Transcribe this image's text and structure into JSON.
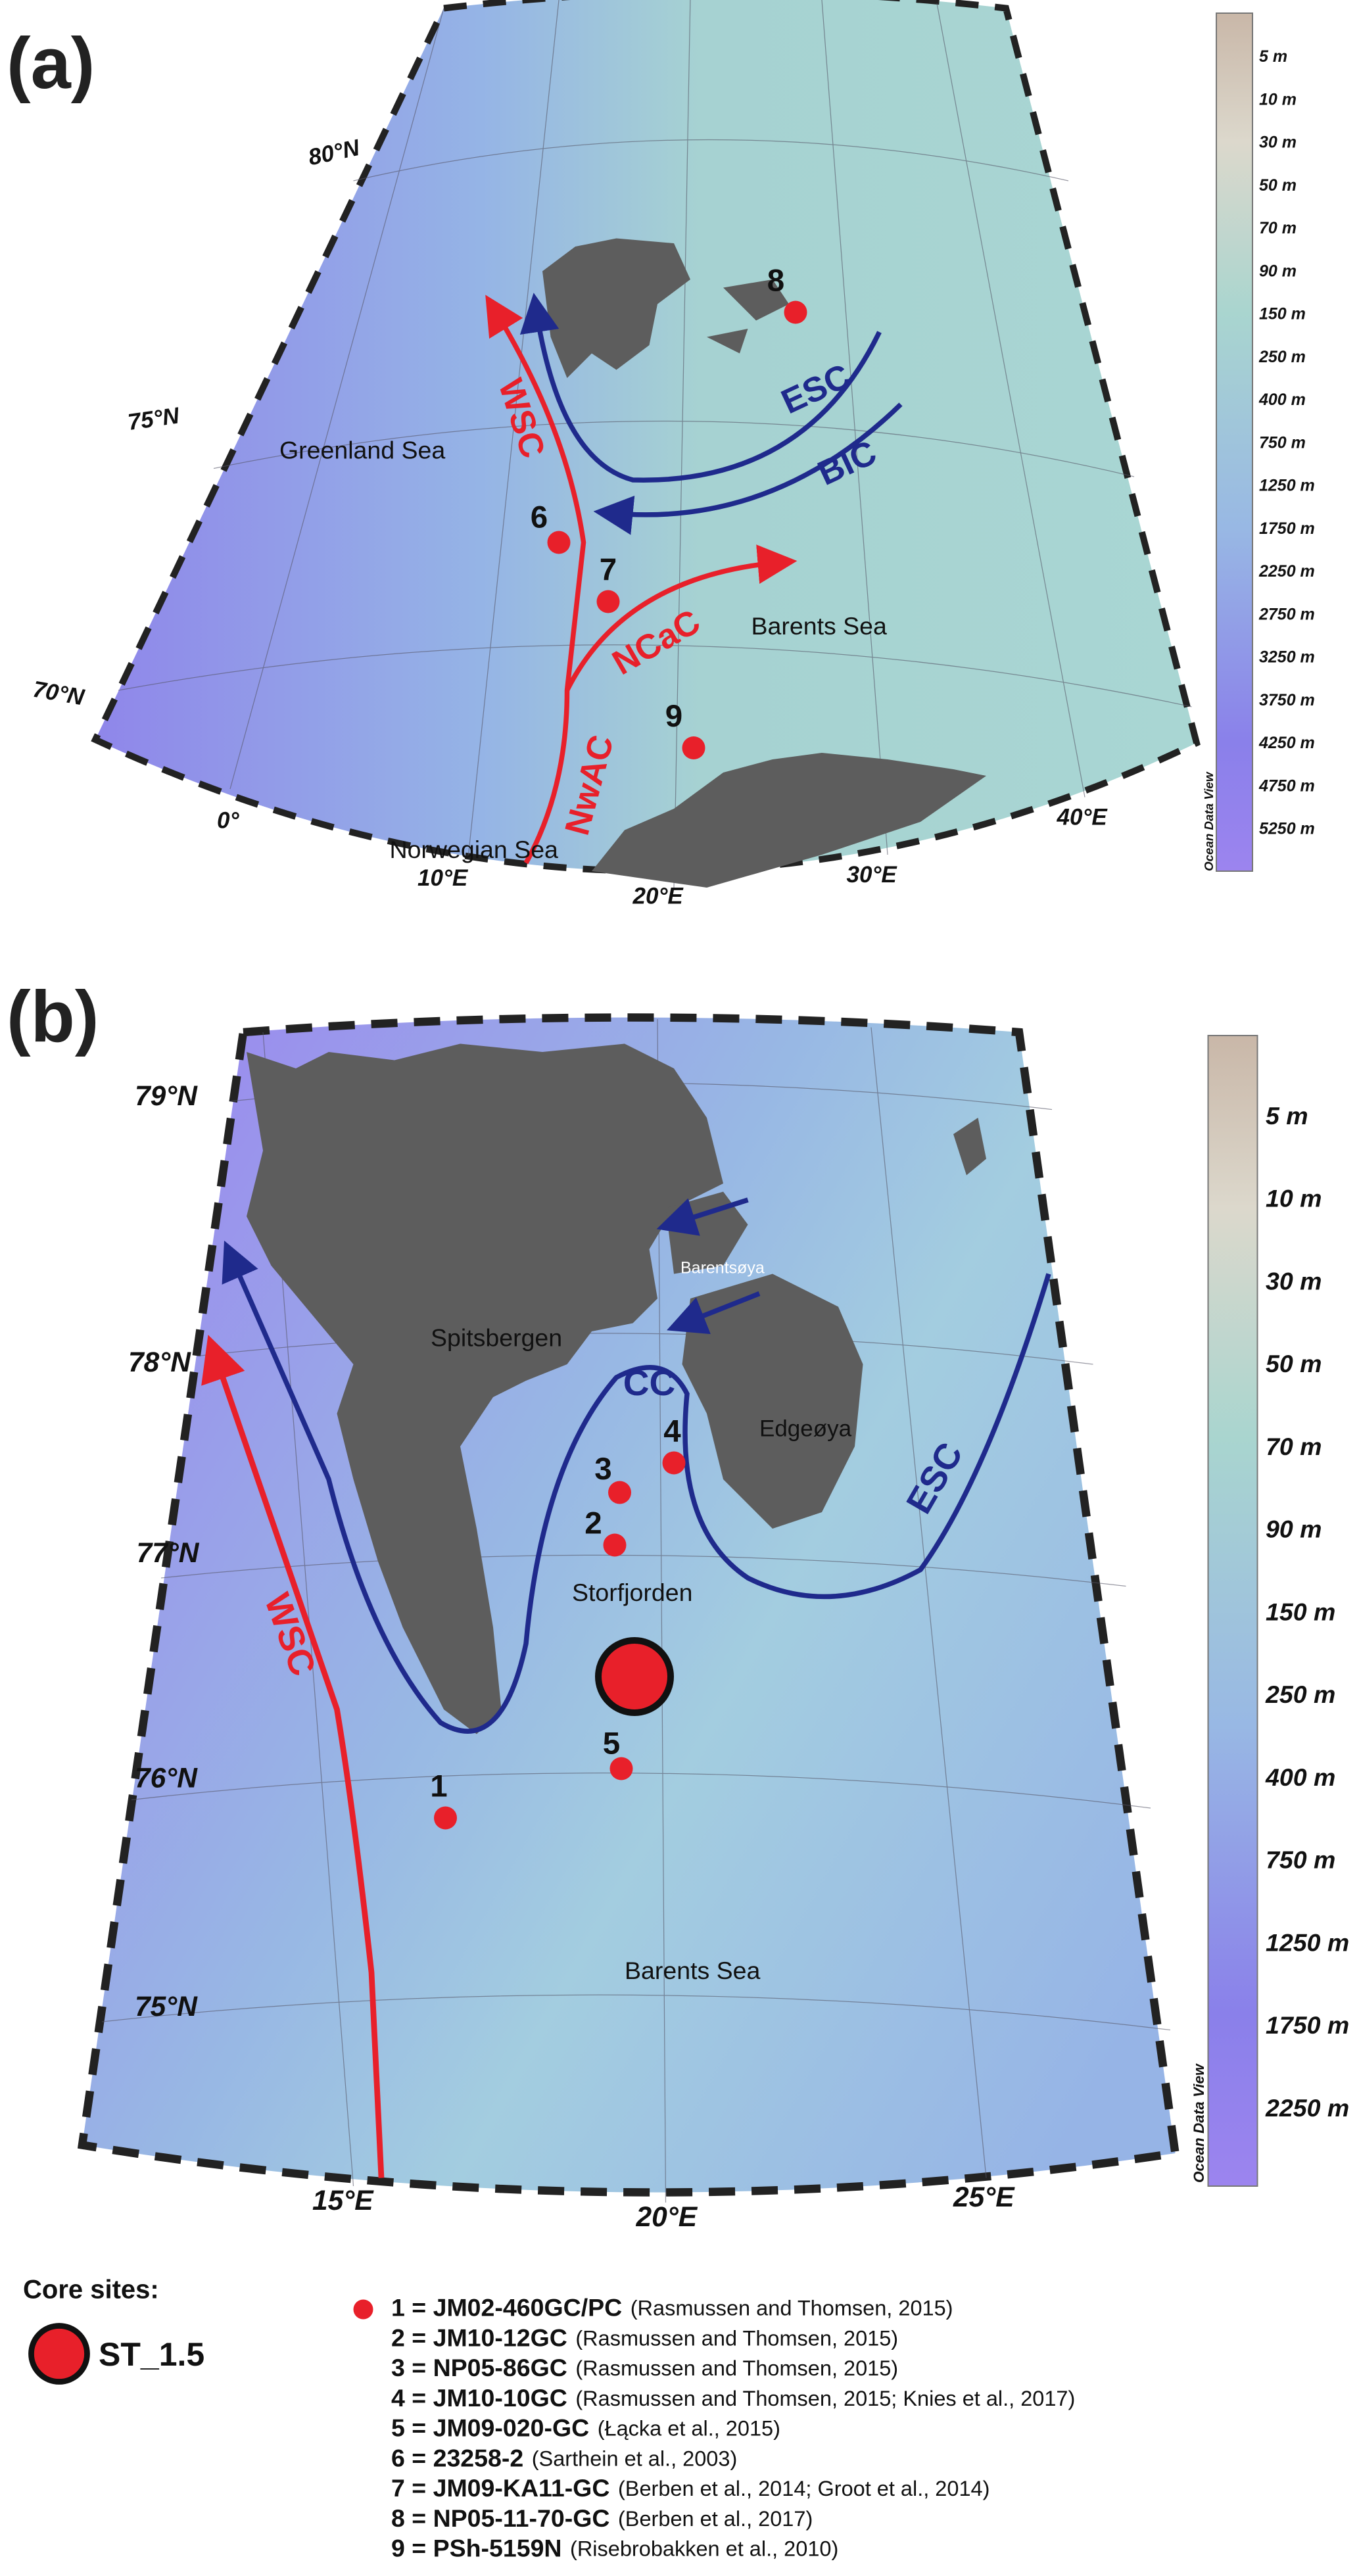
{
  "panel_a": {
    "label": "(a)",
    "lat_labels": [
      "80°N",
      "75°N",
      "70°N"
    ],
    "lon_labels": [
      "0°",
      "10°E",
      "20°E",
      "30°E",
      "40°E"
    ],
    "places": [
      "Greenland Sea",
      "Barents Sea",
      "Norwegian Sea"
    ],
    "currents": [
      "WSC",
      "NwAC",
      "NCaC",
      "ESC",
      "BIC"
    ],
    "sites": [
      "6",
      "7",
      "8",
      "9"
    ],
    "colorbar": {
      "labels": [
        "5 m",
        "10 m",
        "30 m",
        "50 m",
        "70 m",
        "90 m",
        "150 m",
        "250 m",
        "400 m",
        "750 m",
        "1250 m",
        "1750 m",
        "2250 m",
        "2750 m",
        "3250 m",
        "3750 m",
        "4250 m",
        "4750 m",
        "5250 m"
      ],
      "credit": "Ocean Data View"
    }
  },
  "panel_b": {
    "label": "(b)",
    "lat_labels": [
      "79°N",
      "78°N",
      "77°N",
      "76°N",
      "75°N"
    ],
    "lon_labels": [
      "15°E",
      "20°E",
      "25°E"
    ],
    "places": [
      "Spitsbergen",
      "Barentsøya",
      "Edgeøya",
      "Storfjorden",
      "Barents Sea"
    ],
    "currents": [
      "CC",
      "ESC",
      "WSC"
    ],
    "sites": [
      "1",
      "2",
      "3",
      "4",
      "5"
    ],
    "colorbar": {
      "labels": [
        "5 m",
        "10 m",
        "30 m",
        "50 m",
        "70 m",
        "90 m",
        "150 m",
        "250 m",
        "400 m",
        "750 m",
        "1250 m",
        "1750 m",
        "2250 m"
      ],
      "credit": "Ocean Data View"
    }
  },
  "legend": {
    "title": "Core sites:",
    "main_site": "ST_1.5",
    "entries": [
      {
        "code": "1 = JM02-460GC/PC",
        "ref": "(Rasmussen and Thomsen, 2015)"
      },
      {
        "code": "2 = JM10-12GC",
        "ref": "(Rasmussen and Thomsen, 2015)"
      },
      {
        "code": "3 = NP05-86GC",
        "ref": "(Rasmussen and Thomsen, 2015)"
      },
      {
        "code": "4 = JM10-10GC",
        "ref": "(Rasmussen and Thomsen, 2015; Knies et al., 2017)"
      },
      {
        "code": "5 = JM09-020-GC",
        "ref": "(Łącka et al., 2015)"
      },
      {
        "code": "6 = 23258-2",
        "ref": "(Sarthein et al., 2003)"
      },
      {
        "code": "7 = JM09-KA11-GC",
        "ref": "(Berben et al., 2014; Groot et al., 2014)"
      },
      {
        "code": "8 = NP05-11-70-GC",
        "ref": "(Berben et al., 2017)"
      },
      {
        "code": "9 = PSh-5159N",
        "ref": "(Risebrobakken et al., 2010)"
      }
    ]
  }
}
